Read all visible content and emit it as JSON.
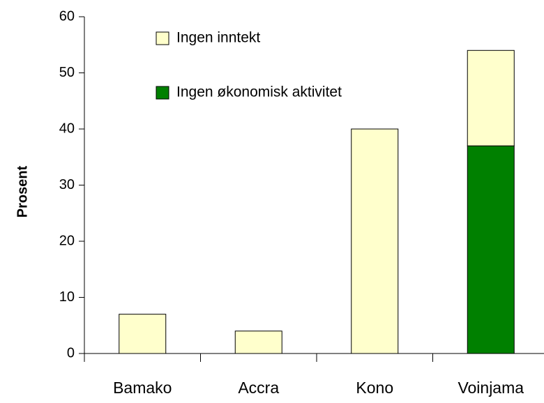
{
  "chart_data": {
    "type": "bar",
    "stacked": true,
    "y_label": "Prosent",
    "categories": [
      "Bamako",
      "Accra",
      "Kono",
      "Voinjama"
    ],
    "series": [
      {
        "name": "Ingen inntekt",
        "color": "#ffffcc",
        "values": [
          7,
          4,
          40,
          17
        ]
      },
      {
        "name": "Ingen økonomisk aktivitet",
        "color": "#008000",
        "values": [
          0,
          0,
          0,
          37
        ]
      }
    ],
    "ylim": [
      0,
      60
    ],
    "yticks": [
      0,
      10,
      20,
      30,
      40,
      50,
      60
    ],
    "grid": false,
    "legend": "top"
  }
}
